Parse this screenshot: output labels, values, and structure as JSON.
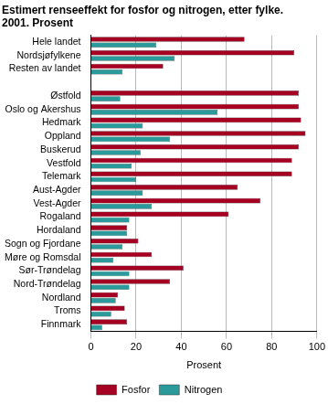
{
  "chart_data": {
    "type": "bar",
    "orientation": "horizontal",
    "title": [
      "Estimert renseeffekt for fosfor og nitrogen, etter fylke.",
      "2001. Prosent"
    ],
    "x_label": "Prosent",
    "categories": [
      "Hele landet",
      "Nordsjøfylkene",
      "Resten av landet",
      null,
      "Østfold",
      "Oslo og Akershus",
      "Hedmark",
      "Oppland",
      "Buskerud",
      "Vestfold",
      "Telemark",
      "Aust-Agder",
      "Vest-Agder",
      "Rogaland",
      "Hordaland",
      "Sogn og Fjordane",
      "Møre og Romsdal",
      "Sør-Trøndelag",
      "Nord-Trøndelag",
      "Nordland",
      "Troms",
      "Finnmark"
    ],
    "series": [
      {
        "name": "Fosfor",
        "color": "#a50021",
        "values": [
          68,
          90,
          32,
          null,
          92,
          92,
          93,
          95,
          92,
          89,
          89,
          65,
          75,
          61,
          16,
          21,
          27,
          41,
          35,
          12,
          15,
          16
        ]
      },
      {
        "name": "Nitrogen",
        "color": "#2a9a9a",
        "values": [
          29,
          37,
          14,
          null,
          13,
          56,
          23,
          35,
          22,
          18,
          20,
          23,
          27,
          17,
          16,
          14,
          10,
          17,
          17,
          11,
          9,
          5
        ]
      }
    ],
    "xlim": [
      0,
      100
    ],
    "xticks": [
      0,
      20,
      40,
      60,
      80,
      100
    ],
    "grid": true,
    "legend": "bottom"
  }
}
